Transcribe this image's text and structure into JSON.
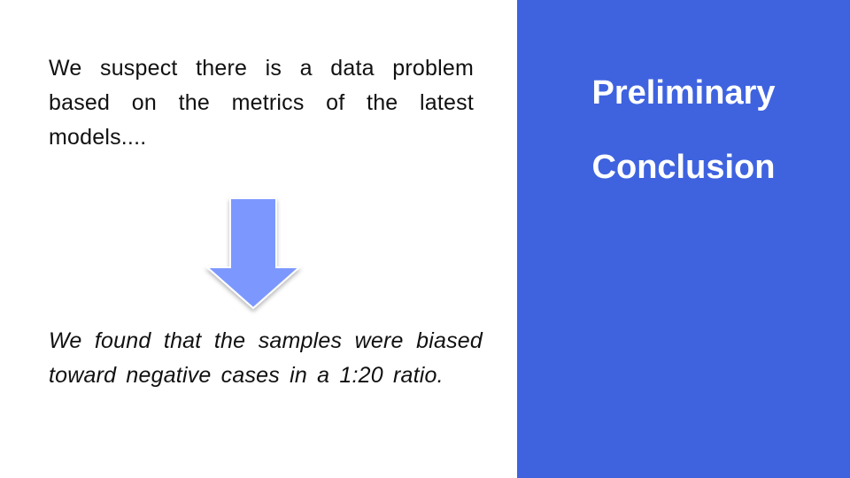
{
  "slide": {
    "intro_text": "We suspect there is a data problem based on the metrics of the latest models....",
    "finding_text": "We found that the samples were biased toward negative cases in a 1:20 ratio.",
    "title_line_1": "Preliminary",
    "title_line_2": "Conclusion"
  },
  "icons": {
    "arrow": "arrow-down-icon"
  },
  "colors": {
    "panel_background": "#3f63df",
    "arrow_fill": "#7b98ff",
    "text": "#111111",
    "title_text": "#ffffff"
  }
}
